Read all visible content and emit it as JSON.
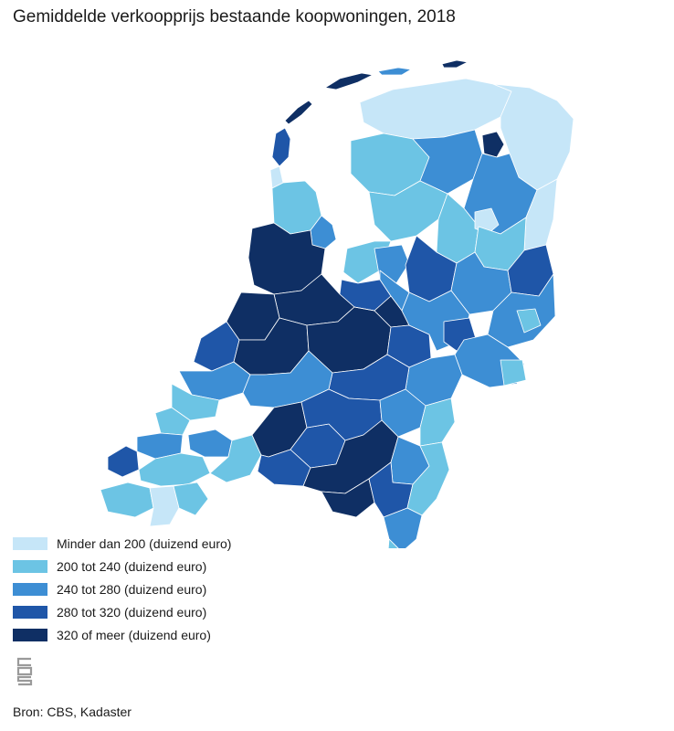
{
  "title": "Gemiddelde verkoopprijs bestaande koopwoningen, 2018",
  "legend": [
    {
      "label": "Minder dan 200 (duizend euro)",
      "color": "#c6e6f8"
    },
    {
      "label": "200 tot 240 (duizend euro)",
      "color": "#6cc4e4"
    },
    {
      "label": "240 tot 280 (duizend euro)",
      "color": "#3d8ed4"
    },
    {
      "label": "280 tot 320 (duizend euro)",
      "color": "#1f56a8"
    },
    {
      "label": "320 of meer (duizend euro)",
      "color": "#0f2f64"
    }
  ],
  "source": "Bron: CBS, Kadaster",
  "logo_text": "cbs"
}
